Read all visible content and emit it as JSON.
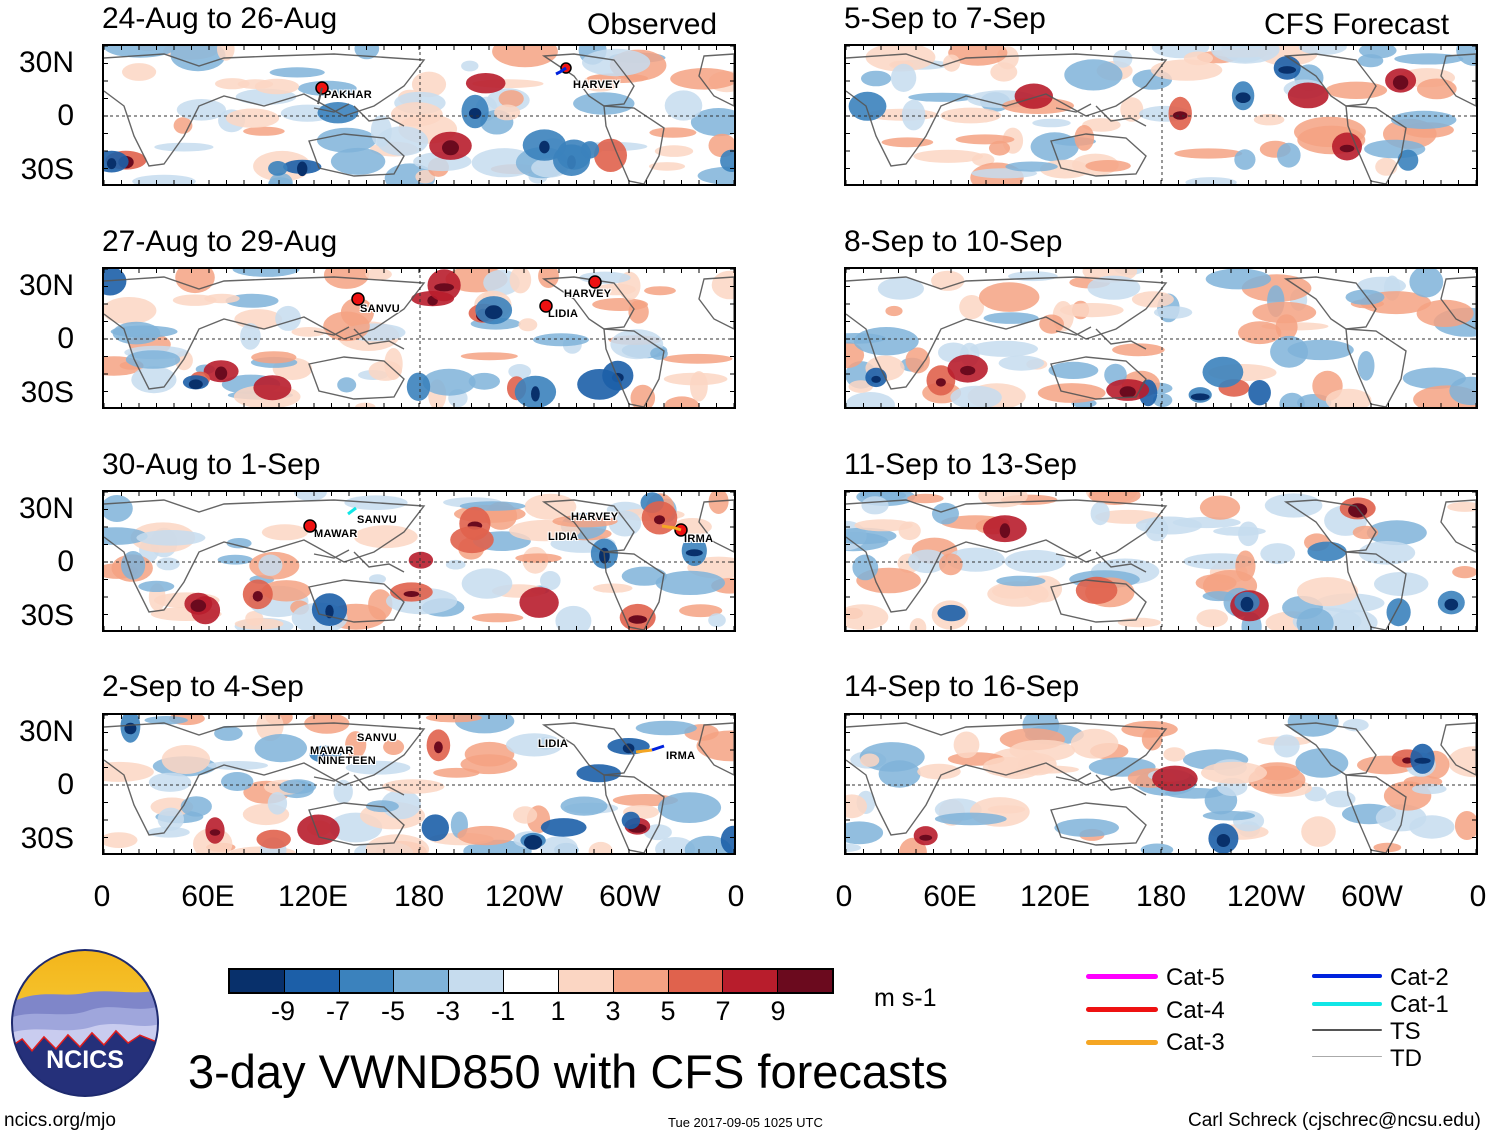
{
  "corner_labels": {
    "left": "Observed",
    "right": "CFS Forecast"
  },
  "panels": [
    {
      "title": "24-Aug to 26-Aug",
      "seed": 11,
      "storms": [
        {
          "name": "PAKHAR"
        },
        {
          "name": "HARVEY"
        }
      ]
    },
    {
      "title": "27-Aug to 29-Aug",
      "seed": 23,
      "storms": [
        {
          "name": "SANVU"
        },
        {
          "name": "HARVEY"
        },
        {
          "name": "LIDIA"
        }
      ]
    },
    {
      "title": "30-Aug to 1-Sep",
      "seed": 37,
      "storms": [
        {
          "name": "SANVU"
        },
        {
          "name": "MAWAR"
        },
        {
          "name": "HARVEY"
        },
        {
          "name": "LIDIA"
        },
        {
          "name": "IRMA"
        }
      ]
    },
    {
      "title": "2-Sep to 4-Sep",
      "seed": 41,
      "storms": [
        {
          "name": "SANVU"
        },
        {
          "name": "MAWAR"
        },
        {
          "name": "NINETEEN"
        },
        {
          "name": "LIDIA"
        },
        {
          "name": "IRMA"
        }
      ]
    },
    {
      "title": "5-Sep to 7-Sep",
      "seed": 53,
      "storms": []
    },
    {
      "title": "8-Sep to 10-Sep",
      "seed": 67,
      "storms": []
    },
    {
      "title": "11-Sep to 13-Sep",
      "seed": 71,
      "storms": []
    },
    {
      "title": "14-Sep to 16-Sep",
      "seed": 89,
      "storms": []
    }
  ],
  "y_axis_labels": [
    "30N",
    "0",
    "30S"
  ],
  "x_axis_labels": [
    "0",
    "60E",
    "120E",
    "180",
    "120W",
    "60W",
    "0"
  ],
  "colorbar": {
    "colors": [
      "#08306b",
      "#1c5fa8",
      "#3b82bd",
      "#7fb3d9",
      "#c6dcee",
      "#ffffff",
      "#fbd6c3",
      "#f4a283",
      "#e0624d",
      "#b81d2c",
      "#6b0a1e"
    ],
    "labels": [
      "-9",
      "-7",
      "-5",
      "-3",
      "-1",
      "1",
      "3",
      "5",
      "7",
      "9"
    ],
    "units": "m s-1"
  },
  "legend": [
    {
      "label": "Cat-5",
      "color": "#ff00ff"
    },
    {
      "label": "Cat-4",
      "color": "#ee1111"
    },
    {
      "label": "Cat-3",
      "color": "#f5a623"
    },
    {
      "label": "Cat-2",
      "color": "#0022dd"
    },
    {
      "label": "Cat-1",
      "color": "#11e6e6"
    },
    {
      "label": "TS",
      "color": "#555555"
    },
    {
      "label": "TD",
      "color": "#aaaaaa"
    }
  ],
  "logo": {
    "text": "NCICS"
  },
  "main_title": "3-day VWND850 with CFS forecasts",
  "footer": {
    "left": "ncics.org/mjo",
    "center": "Tue 2017-09-05 1025 UTC",
    "right": "Carl Schreck (cjschrec@ncsu.edu)"
  }
}
